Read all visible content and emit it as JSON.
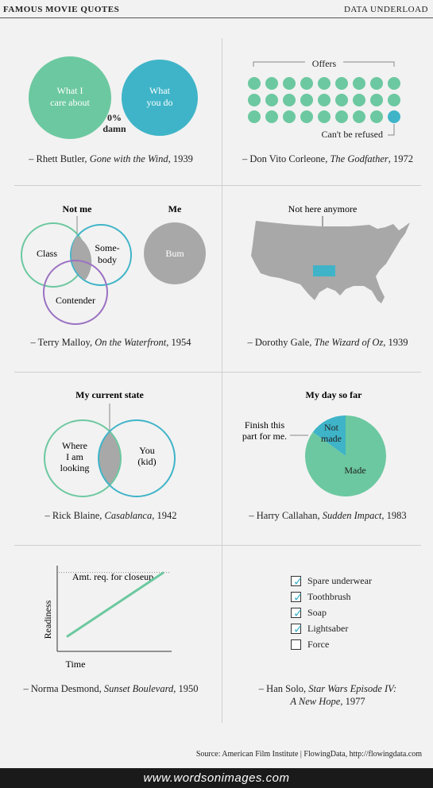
{
  "header": {
    "title": "FAMOUS MOVIE QUOTES",
    "brand": "DATA UNDERLOAD"
  },
  "colors": {
    "green": "#6cc8a0",
    "blue": "#3fb4c8",
    "purple": "#9b72c2",
    "gray": "#a8a8a8"
  },
  "panels": {
    "rhett": {
      "left_label": [
        "What I",
        "care about"
      ],
      "right_label": [
        "What",
        "you do"
      ],
      "overlap_label": [
        "0%",
        "damn"
      ],
      "caption_pre": "– Rhett Butler, ",
      "caption_film": "Gone with the Wind",
      "caption_post": ", 1939"
    },
    "vito": {
      "top_label": "Offers",
      "bottom_label": "Can't be refused",
      "chart_data": {
        "type": "dot-grid",
        "rows": 3,
        "cols": 9,
        "total": 27,
        "refused": 1
      },
      "caption_pre": "– Don Vito Corleone, ",
      "caption_film": "The Godfather",
      "caption_post": ", 1972"
    },
    "terry": {
      "left_title": "Not me",
      "right_title": "Me",
      "circles": [
        "Class",
        "Some-",
        "body",
        "Contender"
      ],
      "me_label": "Bum",
      "caption_pre": "– Terry Malloy, ",
      "caption_film": "On the Waterfront",
      "caption_post": ", 1954"
    },
    "dorothy": {
      "label": "Not here anymore",
      "caption_pre": "– Dorothy Gale, ",
      "caption_film": "The Wizard of Oz",
      "caption_post": ", 1939"
    },
    "rick": {
      "title": "My current state",
      "left_label": [
        "Where",
        "I am",
        "looking"
      ],
      "right_label": [
        "You",
        "(kid)"
      ],
      "caption_pre": "– Rick Blaine, ",
      "caption_film": "Casablanca",
      "caption_post": ", 1942"
    },
    "harry": {
      "title": "My day so far",
      "annotation": [
        "Finish this",
        "part for me."
      ],
      "chart_data": {
        "type": "pie",
        "slices": [
          {
            "label": "Not made",
            "label_lines": [
              "Not",
              "made"
            ],
            "value": 15
          },
          {
            "label": "Made",
            "value": 85
          }
        ]
      },
      "caption_pre": "– Harry Callahan, ",
      "caption_film": "Sudden Impact",
      "caption_post": ", 1983"
    },
    "norma": {
      "chart_data": {
        "type": "line",
        "xlabel": "Time",
        "ylabel": "Readiness",
        "threshold_label": "Amt. req. for closeup",
        "x": [
          0,
          1
        ],
        "y": [
          0.17,
          0.92
        ],
        "threshold": 0.92,
        "ylim": [
          0,
          1
        ]
      },
      "caption_pre": "– Norma Desmond, ",
      "caption_film": "Sunset Boulevard",
      "caption_post": ", 1950"
    },
    "han": {
      "checklist": [
        {
          "label": "Spare underwear",
          "checked": true
        },
        {
          "label": "Toothbrush",
          "checked": true
        },
        {
          "label": "Soap",
          "checked": true
        },
        {
          "label": "Lightsaber",
          "checked": true
        },
        {
          "label": "Force",
          "checked": false
        }
      ],
      "caption_pre": "– Han Solo, ",
      "caption_film_1": "Star Wars Episode IV:",
      "caption_film_2": "A New Hope",
      "caption_post": ", 1977"
    }
  },
  "source": "Source: American Film Institute | FlowingData, http://flowingdata.com",
  "watermark": "www.wordsonimages.com"
}
